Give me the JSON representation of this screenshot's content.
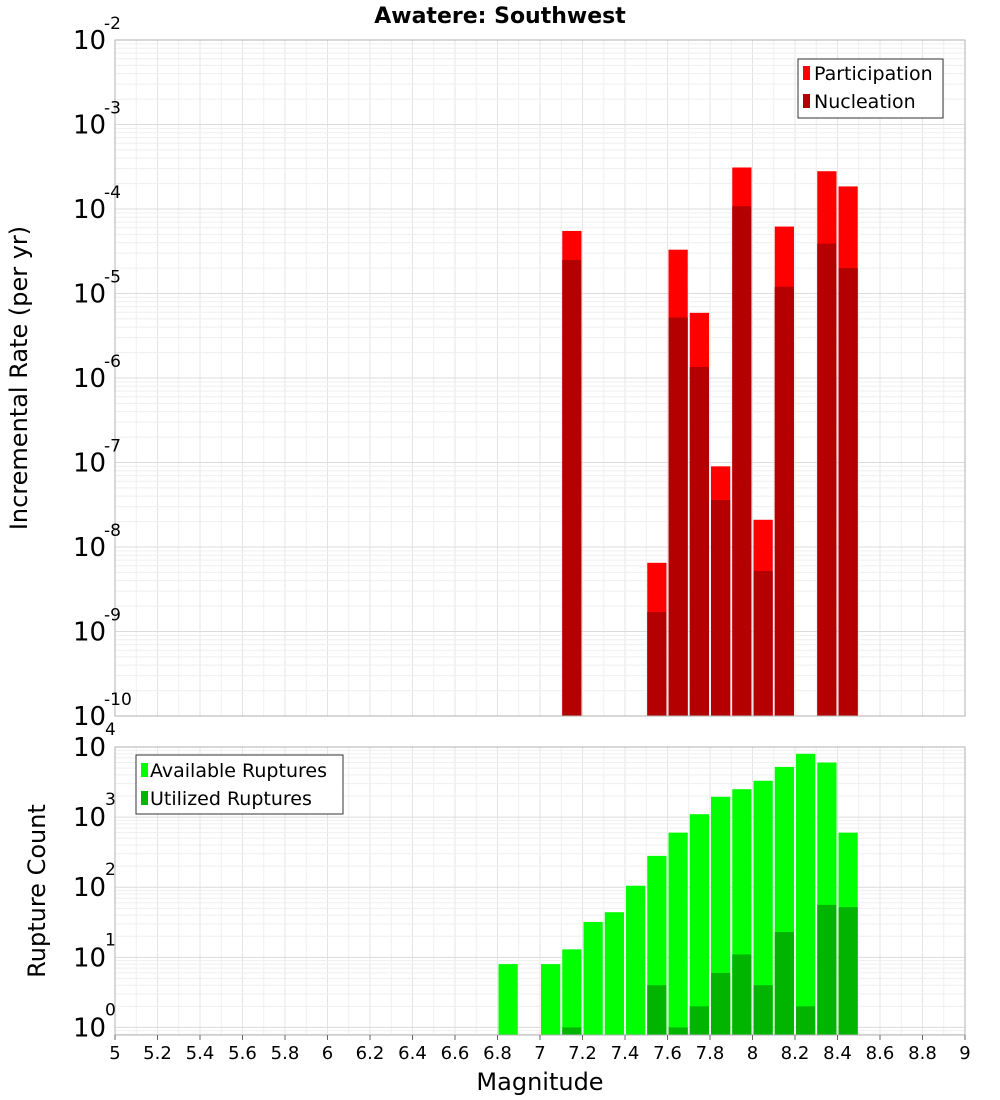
{
  "chart_data": [
    {
      "type": "bar",
      "title": "Awatere: Southwest",
      "ylabel": "Incremental Rate (per yr)",
      "xlabel": "",
      "yscale": "log",
      "xlim": [
        5,
        9
      ],
      "ylim": [
        1e-10,
        0.01
      ],
      "y_ticks": [
        {
          "base": "10",
          "exp": "-2",
          "v": 0.01
        },
        {
          "base": "10",
          "exp": "-3",
          "v": 0.001
        },
        {
          "base": "10",
          "exp": "-4",
          "v": 0.0001
        },
        {
          "base": "10",
          "exp": "-5",
          "v": 1e-05
        },
        {
          "base": "10",
          "exp": "-6",
          "v": 1e-06
        },
        {
          "base": "10",
          "exp": "-7",
          "v": 1e-07
        },
        {
          "base": "10",
          "exp": "-8",
          "v": 1e-08
        },
        {
          "base": "10",
          "exp": "-9",
          "v": 1e-09
        },
        {
          "base": "10",
          "exp": "-10",
          "v": 1e-10
        }
      ],
      "grid": true,
      "legend_position": "top-right",
      "bin_width": 0.1,
      "series": [
        {
          "name": "Participation",
          "color": "#ff0000",
          "x": [
            7.15,
            7.55,
            7.65,
            7.75,
            7.85,
            7.95,
            8.05,
            8.15,
            8.35,
            8.45
          ],
          "values": [
            5.5e-05,
            6.5e-09,
            3.3e-05,
            5.9e-06,
            9e-08,
            0.00031,
            2.1e-08,
            6.2e-05,
            0.00028,
            0.000185
          ]
        },
        {
          "name": "Nucleation",
          "color": "#b40000",
          "x": [
            7.15,
            7.55,
            7.65,
            7.75,
            7.85,
            7.95,
            8.05,
            8.15,
            8.35,
            8.45
          ],
          "values": [
            2.5e-05,
            1.7e-09,
            5.2e-06,
            1.35e-06,
            3.6e-08,
            0.000108,
            5.2e-09,
            1.2e-05,
            3.9e-05,
            2e-05
          ]
        }
      ]
    },
    {
      "type": "bar",
      "title": "",
      "ylabel": "Rupture Count",
      "xlabel": "Magnitude",
      "yscale": "log",
      "xlim": [
        5,
        9
      ],
      "ylim": [
        0.78,
        10000
      ],
      "x_ticks": [
        "5",
        "5.2",
        "5.4",
        "5.6",
        "5.8",
        "6",
        "6.2",
        "6.4",
        "6.6",
        "6.8",
        "7",
        "7.2",
        "7.4",
        "7.6",
        "7.8",
        "8",
        "8.2",
        "8.4",
        "8.6",
        "8.8",
        "9"
      ],
      "y_ticks": [
        {
          "base": "10",
          "exp": "4",
          "v": 10000
        },
        {
          "base": "10",
          "exp": "3",
          "v": 1000
        },
        {
          "base": "10",
          "exp": "2",
          "v": 100
        },
        {
          "base": "10",
          "exp": "1",
          "v": 10
        },
        {
          "base": "10",
          "exp": "0",
          "v": 1
        }
      ],
      "grid": true,
      "legend_position": "top-left",
      "bin_width": 0.1,
      "series": [
        {
          "name": "Available Ruptures",
          "color": "#00ff00",
          "x": [
            6.85,
            7.05,
            7.15,
            7.25,
            7.35,
            7.45,
            7.55,
            7.65,
            7.75,
            7.85,
            7.95,
            8.05,
            8.15,
            8.25,
            8.35,
            8.45
          ],
          "values": [
            8,
            8,
            13,
            32,
            44,
            105,
            280,
            600,
            1100,
            1950,
            2500,
            3300,
            5200,
            8000,
            6000,
            600
          ]
        },
        {
          "name": "Utilized Ruptures",
          "color": "#00b400",
          "x": [
            7.15,
            7.55,
            7.65,
            7.75,
            7.85,
            7.95,
            8.05,
            8.15,
            8.25,
            8.35,
            8.45
          ],
          "values": [
            1,
            4,
            1,
            2,
            6,
            11,
            4,
            23,
            2,
            56,
            52
          ]
        }
      ]
    }
  ]
}
